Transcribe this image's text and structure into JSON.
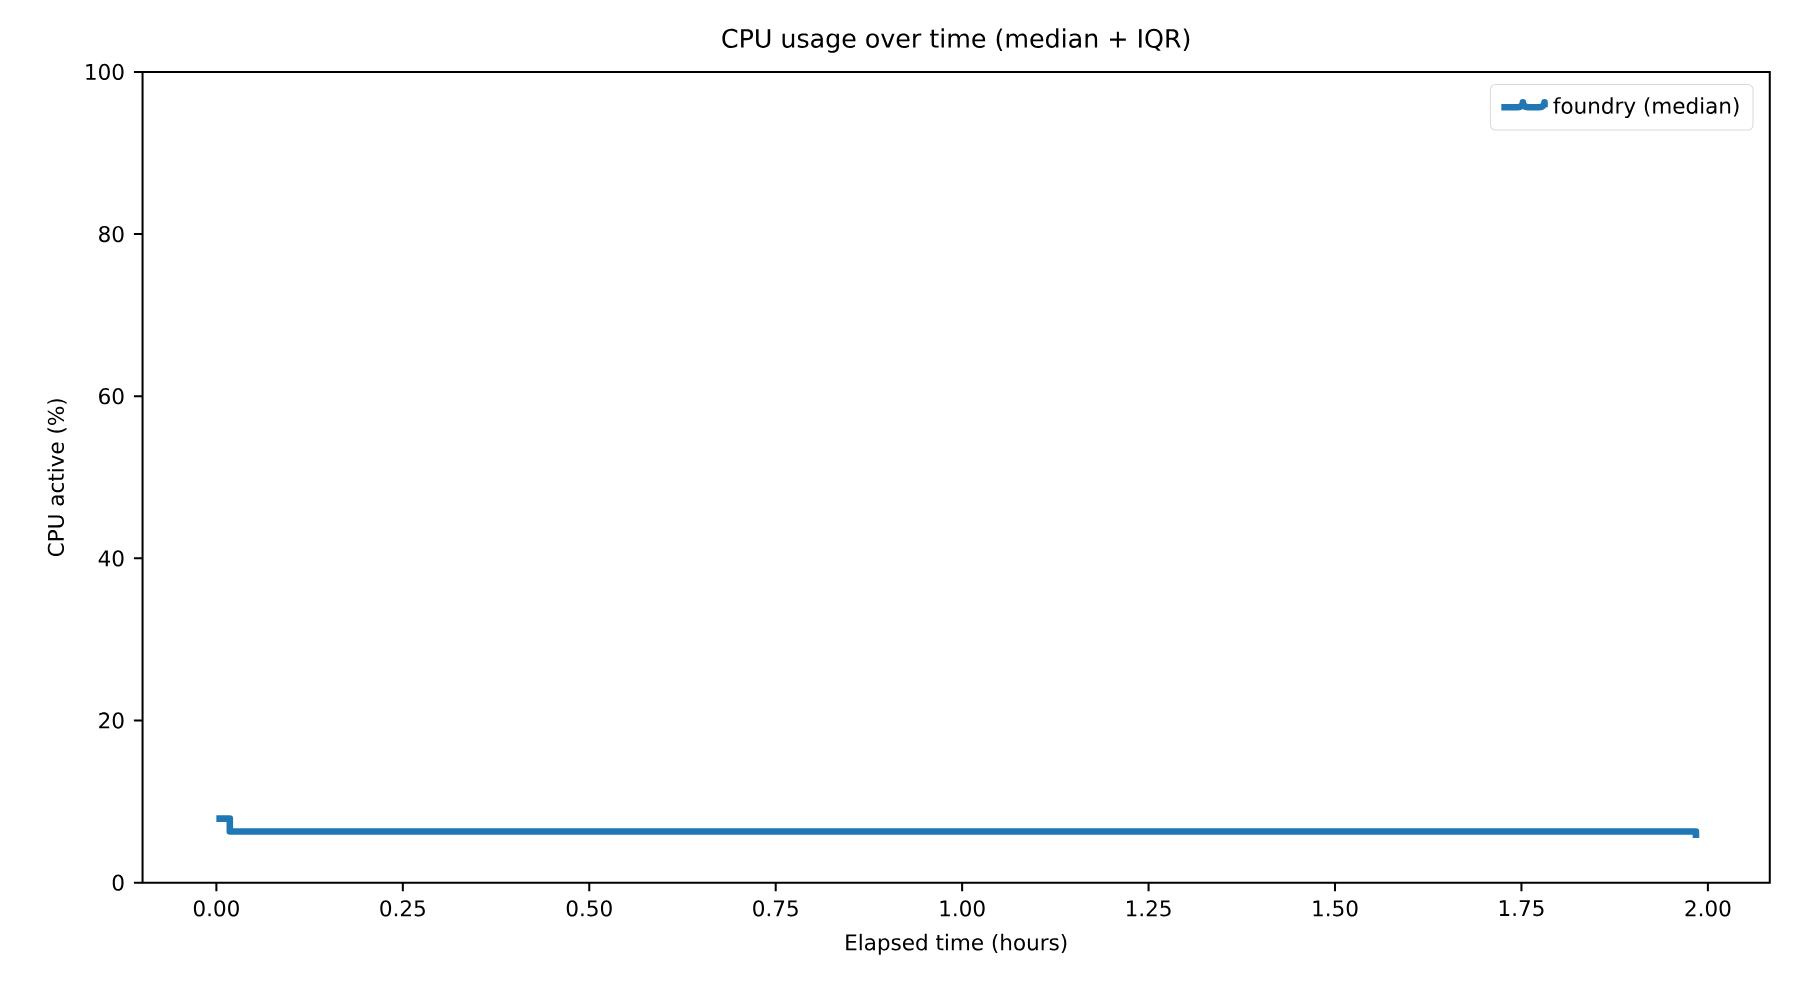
{
  "chart_data": {
    "type": "step",
    "title": "CPU usage over time (median + IQR)",
    "xlabel": "Elapsed time (hours)",
    "ylabel": "CPU active (%)",
    "series": [
      {
        "name": "foundry (median)",
        "color": "#1f77b4",
        "x": [
          0,
          0.018,
          1.984
        ],
        "values": [
          7.9,
          6.3,
          5.5
        ]
      }
    ],
    "xlim": [
      -0.099,
      2.083
    ],
    "xticks": [
      {
        "value": 0,
        "label": "0.00"
      },
      0.25,
      {
        "value": 0.5,
        "label": "0.50"
      },
      0.75,
      {
        "value": 1,
        "label": "1.00"
      },
      1.25,
      {
        "value": 1.5,
        "label": "1.50"
      },
      1.75,
      {
        "value": 2,
        "label": "2.00"
      }
    ],
    "ylim": [
      0,
      100
    ],
    "yticks": [
      0,
      20,
      40,
      60,
      80,
      100
    ],
    "legend": "top right"
  }
}
